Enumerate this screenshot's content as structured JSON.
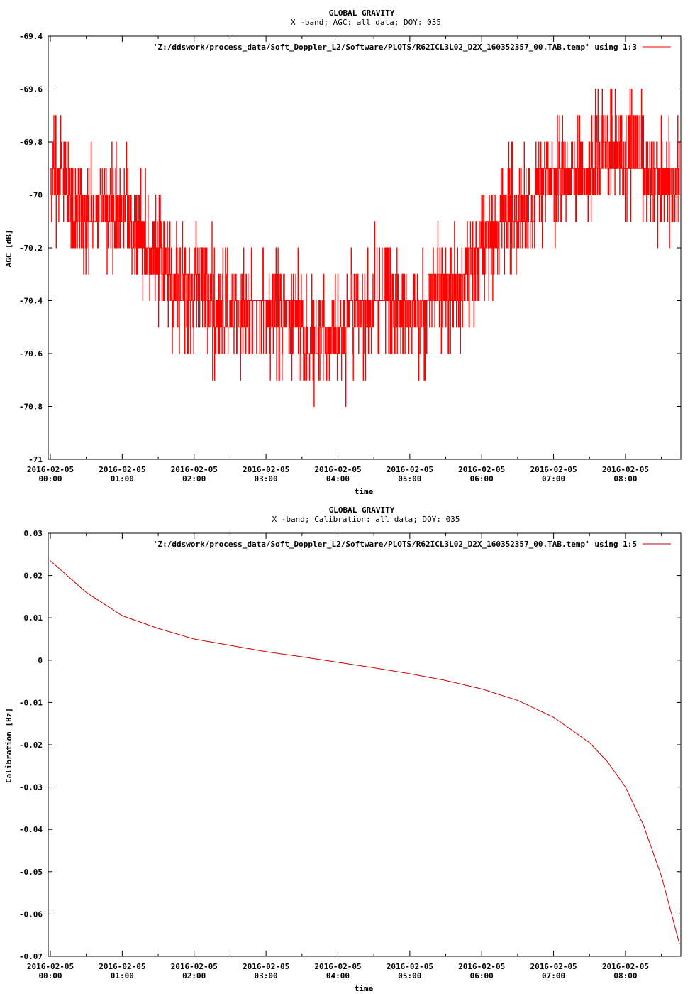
{
  "chart_data": [
    {
      "type": "line",
      "title": "GLOBAL GRAVITY",
      "subtitle": "X -band; AGC: all data; DOY: 035",
      "xlabel": "time",
      "ylabel": "AGC [dB]",
      "ylim": [
        -71,
        -69.4
      ],
      "yticks": [
        "-69.4",
        "-69.6",
        "-69.8",
        "-70",
        "-70.2",
        "-70.4",
        "-70.6",
        "-70.8",
        "-71"
      ],
      "xticks_date": [
        "2016-02-05",
        "2016-02-05",
        "2016-02-05",
        "2016-02-05",
        "2016-02-05",
        "2016-02-05",
        "2016-02-05",
        "2016-02-05",
        "2016-02-05"
      ],
      "xticks_time": [
        "00:00",
        "01:00",
        "02:00",
        "03:00",
        "04:00",
        "05:00",
        "06:00",
        "07:00",
        "08:00"
      ],
      "grid": false,
      "legend_position": "top-right",
      "color": "#ff0000",
      "series": [
        {
          "name": "'Z:/ddswork/process_data/Soft_Doppler_L2/Software/PLOTS/R62ICL3L02_D2X_160352357_00.TAB.temp' using 1:3",
          "x": [
            "2016-02-05 00:00",
            "2016-02-05 00:15",
            "2016-02-05 00:30",
            "2016-02-05 00:45",
            "2016-02-05 01:00",
            "2016-02-05 01:15",
            "2016-02-05 01:30",
            "2016-02-05 01:45",
            "2016-02-05 02:00",
            "2016-02-05 02:15",
            "2016-02-05 02:30",
            "2016-02-05 02:45",
            "2016-02-05 03:00",
            "2016-02-05 03:15",
            "2016-02-05 03:30",
            "2016-02-05 03:45",
            "2016-02-05 04:00",
            "2016-02-05 04:15",
            "2016-02-05 04:30",
            "2016-02-05 04:45",
            "2016-02-05 05:00",
            "2016-02-05 05:15",
            "2016-02-05 05:30",
            "2016-02-05 05:45",
            "2016-02-05 06:00",
            "2016-02-05 06:15",
            "2016-02-05 06:30",
            "2016-02-05 06:45",
            "2016-02-05 07:00",
            "2016-02-05 07:15",
            "2016-02-05 07:30",
            "2016-02-05 07:45",
            "2016-02-05 08:00",
            "2016-02-05 08:15",
            "2016-02-05 08:30",
            "2016-02-05 08:45"
          ],
          "y": [
            -70.0,
            -70.0,
            -70.05,
            -70.05,
            -70.05,
            -70.15,
            -70.25,
            -70.35,
            -70.35,
            -70.4,
            -70.45,
            -70.4,
            -70.4,
            -70.45,
            -70.5,
            -70.55,
            -70.55,
            -70.45,
            -70.4,
            -70.4,
            -70.45,
            -70.4,
            -70.35,
            -70.3,
            -70.15,
            -70.1,
            -70.05,
            -70.0,
            -69.95,
            -69.95,
            -69.9,
            -69.85,
            -69.9,
            -69.9,
            -69.95,
            -69.95
          ],
          "spread": [
            0.1,
            0.1,
            0.1,
            0.1,
            0.1,
            0.1,
            0.1,
            0.1,
            0.1,
            0.1,
            0.1,
            0.1,
            0.1,
            0.1,
            0.1,
            0.1,
            0.1,
            0.1,
            0.1,
            0.1,
            0.1,
            0.1,
            0.1,
            0.1,
            0.1,
            0.1,
            0.1,
            0.1,
            0.1,
            0.1,
            0.1,
            0.1,
            0.1,
            0.1,
            0.1,
            0.1
          ]
        }
      ]
    },
    {
      "type": "line",
      "title": "GLOBAL GRAVITY",
      "subtitle": "X -band; Calibration: all data; DOY: 035",
      "xlabel": "time",
      "ylabel": "Calibration [Hz]",
      "ylim": [
        -0.07,
        0.03
      ],
      "yticks": [
        "0.03",
        "0.02",
        "0.01",
        "0",
        "-0.01",
        "-0.02",
        "-0.03",
        "-0.04",
        "-0.05",
        "-0.06",
        "-0.07"
      ],
      "xticks_date": [
        "2016-02-05",
        "2016-02-05",
        "2016-02-05",
        "2016-02-05",
        "2016-02-05",
        "2016-02-05",
        "2016-02-05",
        "2016-02-05",
        "2016-02-05"
      ],
      "xticks_time": [
        "00:00",
        "01:00",
        "02:00",
        "03:00",
        "04:00",
        "05:00",
        "06:00",
        "07:00",
        "08:00"
      ],
      "grid": false,
      "legend_position": "top-right",
      "color": "#cc0000",
      "series": [
        {
          "name": "'Z:/ddswork/process_data/Soft_Doppler_L2/Software/PLOTS/R62ICL3L02_D2X_160352357_00.TAB.temp' using 1:5",
          "x": [
            "2016-02-05 00:00",
            "2016-02-05 00:30",
            "2016-02-05 01:00",
            "2016-02-05 01:30",
            "2016-02-05 02:00",
            "2016-02-05 02:30",
            "2016-02-05 03:00",
            "2016-02-05 03:30",
            "2016-02-05 04:00",
            "2016-02-05 04:30",
            "2016-02-05 05:00",
            "2016-02-05 05:30",
            "2016-02-05 06:00",
            "2016-02-05 06:30",
            "2016-02-05 07:00",
            "2016-02-05 07:30",
            "2016-02-05 07:45",
            "2016-02-05 08:00",
            "2016-02-05 08:15",
            "2016-02-05 08:30",
            "2016-02-05 08:45"
          ],
          "y": [
            0.0235,
            0.016,
            0.0105,
            0.0075,
            0.005,
            0.0035,
            0.002,
            0.0008,
            -0.0005,
            -0.0018,
            -0.0032,
            -0.0048,
            -0.0068,
            -0.0095,
            -0.0135,
            -0.0195,
            -0.024,
            -0.03,
            -0.039,
            -0.051,
            -0.067
          ]
        }
      ]
    }
  ]
}
